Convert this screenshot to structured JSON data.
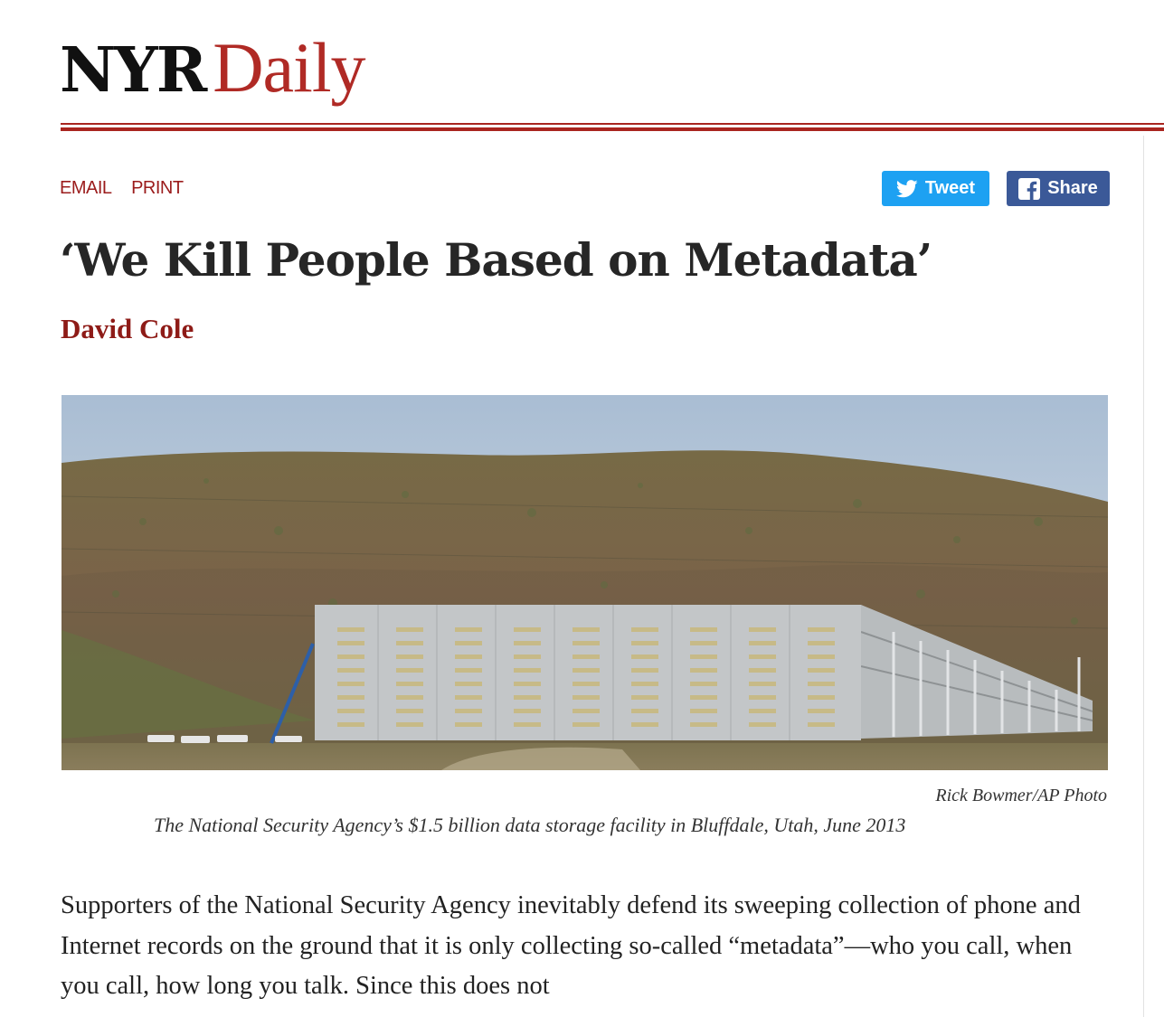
{
  "brand": {
    "part1": "NYR",
    "part2": "Daily"
  },
  "utility": {
    "email": "EMAIL",
    "print": "PRINT"
  },
  "social": {
    "tweet_label": "Tweet",
    "share_label": "Share",
    "tweet_icon": "twitter-bird-icon",
    "share_icon": "facebook-f-icon"
  },
  "article": {
    "title": "‘We Kill People Based on Metadata’",
    "author": "David Cole",
    "image": {
      "credit": "Rick Bowmer/AP Photo",
      "caption": "The National Security Agency’s $1.5 billion data storage facility in Bluffdale, Utah, June 2013"
    },
    "body": "Supporters of the National Security Agency inevitably defend its sweeping collection of phone and Internet records on the ground that it is only collecting so-called “metadata”—who you call, when you call, how long you talk. Since this does not"
  },
  "colors": {
    "brand_red": "#a9251f",
    "link_red": "#9b1c1c",
    "tweet_blue": "#1da1f2",
    "facebook_blue": "#3b5998"
  }
}
